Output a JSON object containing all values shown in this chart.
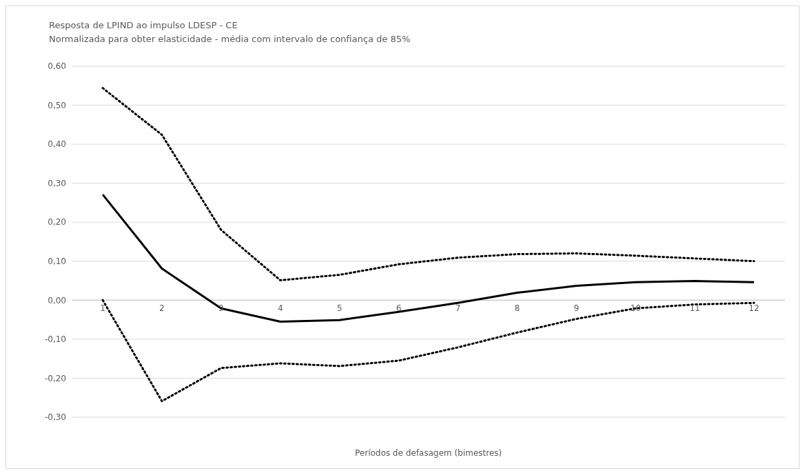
{
  "chart_data": {
    "type": "line",
    "title": "Resposta de LPIND ao impulso LDESP - CE",
    "subtitle": "Normalizada para obter elasticidade - média com intervalo de confiança de 85%",
    "xlabel": "Períodos de defasagem (bimestres)",
    "categories": [
      "1",
      "2",
      "3",
      "4",
      "5",
      "6",
      "7",
      "8",
      "9",
      "10",
      "11",
      "12"
    ],
    "series": [
      {
        "color": "#000000",
        "line_style": "solid",
        "values": [
          0.271,
          0.081,
          -0.021,
          -0.055,
          -0.051,
          -0.03,
          -0.007,
          0.019,
          0.037,
          0.046,
          0.049,
          0.046
        ]
      },
      {
        "color": "#000000",
        "line_style": "dotted",
        "values": [
          0.544,
          0.424,
          0.18,
          0.051,
          0.065,
          0.092,
          0.109,
          0.118,
          0.12,
          0.114,
          0.107,
          0.1
        ]
      },
      {
        "color": "#000000",
        "line_style": "dotted",
        "values": [
          0,
          -0.259,
          -0.174,
          -0.162,
          -0.169,
          -0.155,
          -0.121,
          -0.083,
          -0.048,
          -0.021,
          -0.011,
          -0.007
        ]
      }
    ],
    "ylim": [
      -0.3,
      0.6
    ],
    "yticks": [
      {
        "value": -0.3,
        "label": "-0,30"
      },
      {
        "value": -0.2,
        "label": "-0,20"
      },
      {
        "value": -0.1,
        "label": "-0,10"
      },
      {
        "value": 0,
        "label": "0,00"
      },
      {
        "value": 0.1,
        "label": "0,10"
      },
      {
        "value": 0.2,
        "label": "0,20"
      },
      {
        "value": 0.3,
        "label": "0,30"
      },
      {
        "value": 0.4,
        "label": "0,40"
      },
      {
        "value": 0.5,
        "label": "0,50"
      },
      {
        "value": 0.6,
        "label": "0,60"
      }
    ],
    "grid": "y",
    "legend": false,
    "marker": "none"
  }
}
